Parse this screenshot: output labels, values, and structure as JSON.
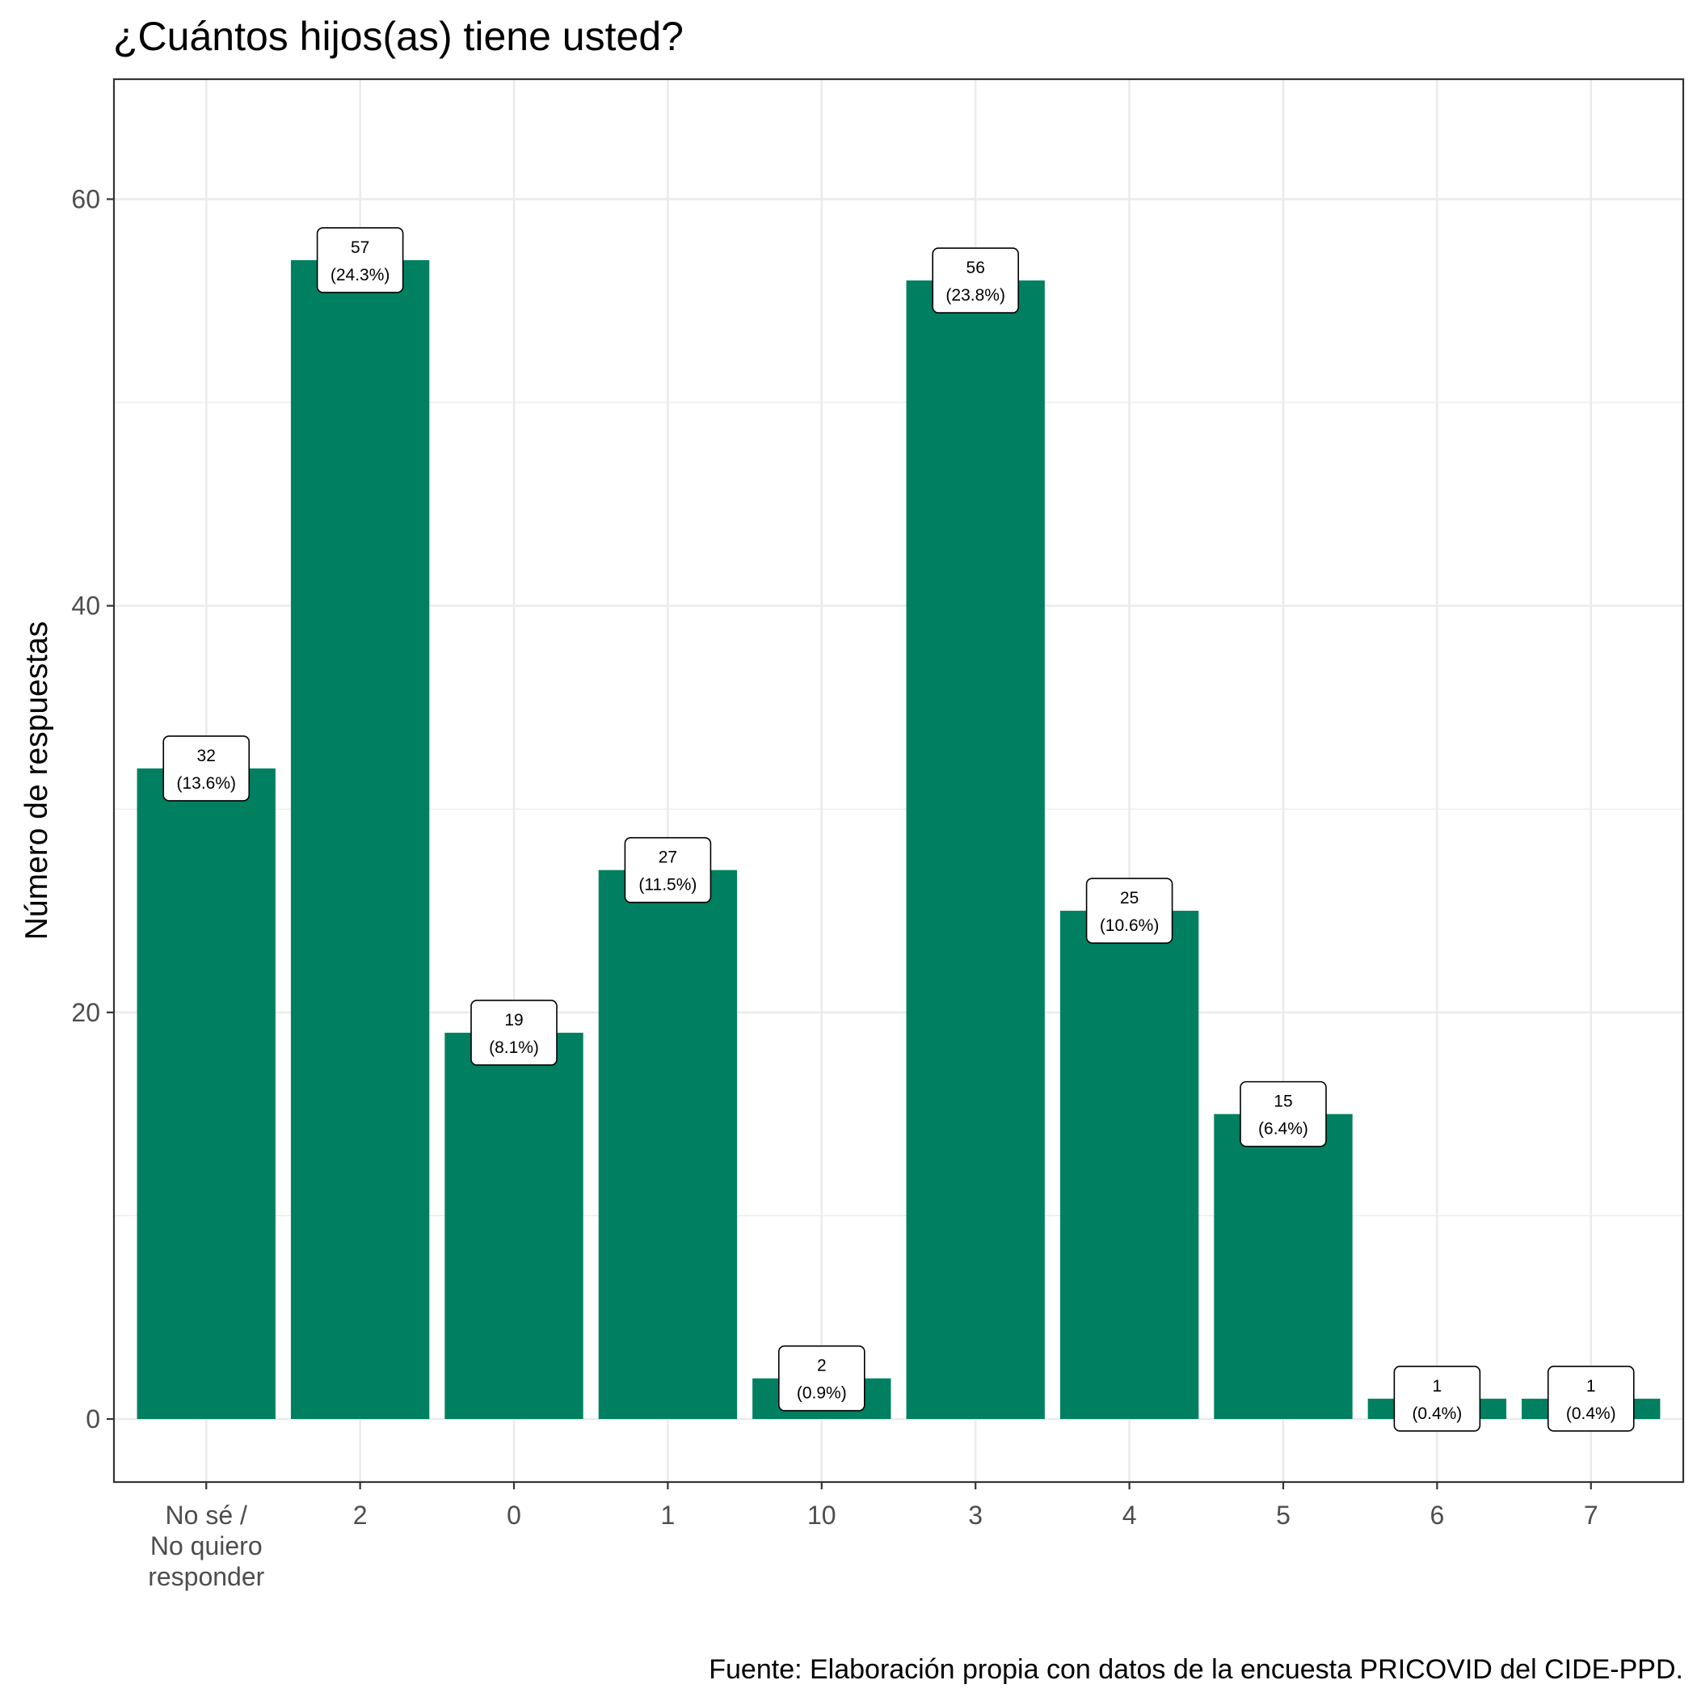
{
  "chart_data": {
    "type": "bar",
    "title": "¿Cuántos hijos(as) tiene usted?",
    "ylabel": "Número de respuestas",
    "xlabel": "",
    "caption": "Fuente: Elaboración propia con datos de la encuesta PRICOVID del CIDE-PPD.",
    "categories": [
      [
        "No sé /",
        "No quiero",
        "responder"
      ],
      [
        "2"
      ],
      [
        "0"
      ],
      [
        "1"
      ],
      [
        "10"
      ],
      [
        "3"
      ],
      [
        "4"
      ],
      [
        "5"
      ],
      [
        "6"
      ],
      [
        "7"
      ]
    ],
    "values": [
      32,
      57,
      19,
      27,
      2,
      56,
      25,
      15,
      1,
      1
    ],
    "percent_labels": [
      "(13.6%)",
      "(24.3%)",
      "(8.1%)",
      "(11.5%)",
      "(0.9%)",
      "(23.8%)",
      "(10.6%)",
      "(6.4%)",
      "(0.4%)",
      "(0.4%)"
    ],
    "ylim": [
      -3.1,
      65.9
    ],
    "yticks": [
      0,
      20,
      40,
      60
    ],
    "grid": true,
    "bar_color": "#008060"
  }
}
